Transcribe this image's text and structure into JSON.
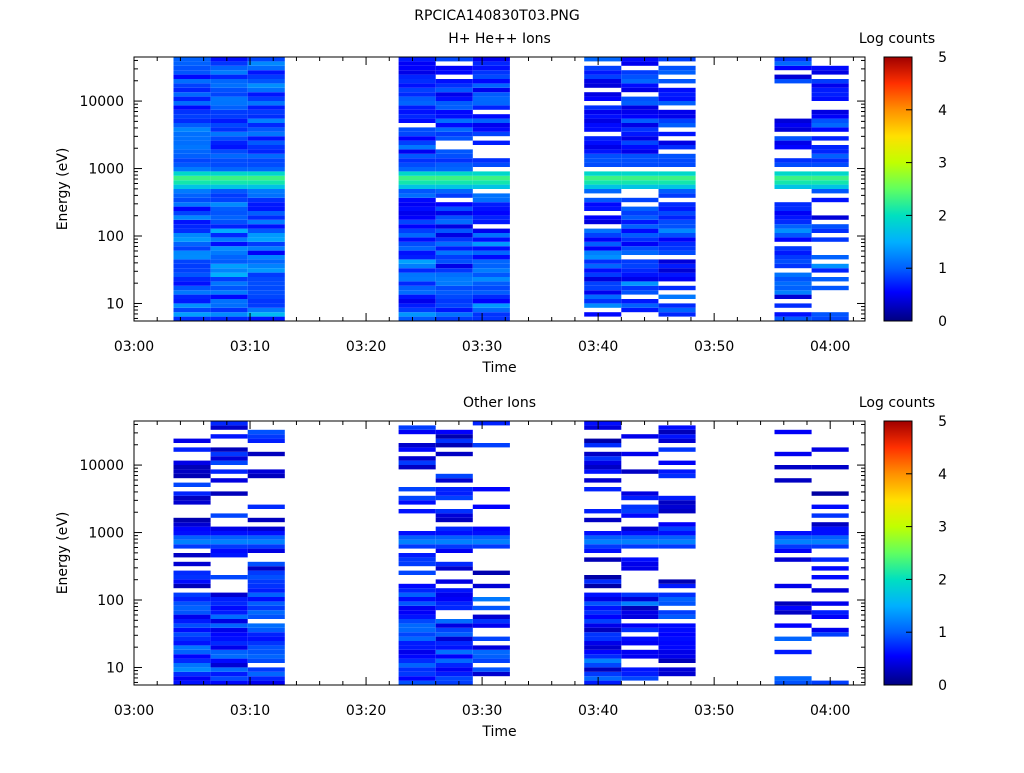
{
  "page_title": "RPCICA140830T03.PNG",
  "chart_data": [
    {
      "type": "heatmap",
      "title": "H+ He++ Ions",
      "xlabel": "Time",
      "ylabel": "Energy (eV)",
      "x_ticks": [
        "03:00",
        "03:10",
        "03:20",
        "03:30",
        "03:40",
        "03:50",
        "04:00"
      ],
      "xlim_minutes": [
        0,
        63
      ],
      "y_scale": "log",
      "ylim": [
        5.5,
        45000
      ],
      "y_ticks": [
        "10",
        "100",
        "1000",
        "10000"
      ],
      "colorbar": {
        "title": "Log counts",
        "ticks": [
          "0",
          "1",
          "2",
          "3",
          "4",
          "5"
        ],
        "range": [
          0,
          5
        ]
      },
      "time_columns": [
        {
          "label": "03:05",
          "start": 3.4,
          "end": 6.6,
          "nrows": 60,
          "seed": 11,
          "base": 0.55,
          "fill": 1.0,
          "low_band": 1.0
        },
        {
          "label": "03:08",
          "start": 6.6,
          "end": 9.8,
          "nrows": 60,
          "seed": 12,
          "base": 0.6,
          "fill": 1.0,
          "low_band": 1.0
        },
        {
          "label": "03:11",
          "start": 9.8,
          "end": 13.0,
          "nrows": 60,
          "seed": 13,
          "base": 0.6,
          "fill": 1.0,
          "low_band": 1.0
        },
        {
          "label": "03:25",
          "start": 22.8,
          "end": 26.0,
          "nrows": 60,
          "seed": 21,
          "base": 0.45,
          "fill": 0.97,
          "low_band": 1.0
        },
        {
          "label": "03:28",
          "start": 26.0,
          "end": 29.2,
          "nrows": 60,
          "seed": 22,
          "base": 0.4,
          "fill": 0.9,
          "low_band": 1.0
        },
        {
          "label": "03:31",
          "start": 29.2,
          "end": 32.4,
          "nrows": 60,
          "seed": 23,
          "base": 0.45,
          "fill": 0.85,
          "low_band": 1.0
        },
        {
          "label": "03:41",
          "start": 38.8,
          "end": 42.0,
          "nrows": 60,
          "seed": 31,
          "base": 0.35,
          "fill": 0.85,
          "low_band": 0.9
        },
        {
          "label": "03:44",
          "start": 42.0,
          "end": 45.2,
          "nrows": 60,
          "seed": 32,
          "base": 0.35,
          "fill": 0.85,
          "low_band": 0.9
        },
        {
          "label": "03:47",
          "start": 45.2,
          "end": 48.4,
          "nrows": 60,
          "seed": 33,
          "base": 0.35,
          "fill": 0.75,
          "low_band": 0.9
        },
        {
          "label": "03:57",
          "start": 55.2,
          "end": 58.4,
          "nrows": 60,
          "seed": 41,
          "base": 0.35,
          "fill": 0.6,
          "low_band": 0.7
        },
        {
          "label": "04:00",
          "start": 58.4,
          "end": 61.6,
          "nrows": 60,
          "seed": 42,
          "base": 0.35,
          "fill": 0.55,
          "low_band": 0.6
        }
      ],
      "peak_energy_eV": 700,
      "peak_level": 2.4
    },
    {
      "type": "heatmap",
      "title": "Other Ions",
      "xlabel": "Time",
      "ylabel": "Energy (eV)",
      "x_ticks": [
        "03:00",
        "03:10",
        "03:20",
        "03:30",
        "03:40",
        "03:50",
        "04:00"
      ],
      "xlim_minutes": [
        0,
        63
      ],
      "y_scale": "log",
      "ylim": [
        5.5,
        45000
      ],
      "y_ticks": [
        "10",
        "100",
        "1000",
        "10000"
      ],
      "colorbar": {
        "title": "Log counts",
        "ticks": [
          "0",
          "1",
          "2",
          "3",
          "4",
          "5"
        ],
        "range": [
          0,
          5
        ]
      },
      "time_columns": [
        {
          "label": "03:05",
          "start": 3.4,
          "end": 6.6,
          "nrows": 60,
          "seed": 51,
          "base": 0.2,
          "fill": 0.55,
          "low_band": 1.0
        },
        {
          "label": "03:08",
          "start": 6.6,
          "end": 9.8,
          "nrows": 60,
          "seed": 52,
          "base": 0.25,
          "fill": 0.5,
          "low_band": 1.0
        },
        {
          "label": "03:11",
          "start": 9.8,
          "end": 13.0,
          "nrows": 60,
          "seed": 53,
          "base": 0.25,
          "fill": 0.5,
          "low_band": 0.9
        },
        {
          "label": "03:25",
          "start": 22.8,
          "end": 26.0,
          "nrows": 60,
          "seed": 61,
          "base": 0.2,
          "fill": 0.5,
          "low_band": 1.0
        },
        {
          "label": "03:28",
          "start": 26.0,
          "end": 29.2,
          "nrows": 60,
          "seed": 62,
          "base": 0.2,
          "fill": 0.45,
          "low_band": 0.9
        },
        {
          "label": "03:31",
          "start": 29.2,
          "end": 32.4,
          "nrows": 60,
          "seed": 63,
          "base": 0.2,
          "fill": 0.4,
          "low_band": 0.5
        },
        {
          "label": "03:41",
          "start": 38.8,
          "end": 42.0,
          "nrows": 60,
          "seed": 71,
          "base": 0.15,
          "fill": 0.45,
          "low_band": 1.0
        },
        {
          "label": "03:44",
          "start": 42.0,
          "end": 45.2,
          "nrows": 60,
          "seed": 72,
          "base": 0.15,
          "fill": 0.4,
          "low_band": 0.8
        },
        {
          "label": "03:47",
          "start": 45.2,
          "end": 48.4,
          "nrows": 60,
          "seed": 73,
          "base": 0.15,
          "fill": 0.4,
          "low_band": 0.8
        },
        {
          "label": "03:57",
          "start": 55.2,
          "end": 58.4,
          "nrows": 60,
          "seed": 81,
          "base": 0.1,
          "fill": 0.3,
          "low_band": 0.3
        },
        {
          "label": "04:00",
          "start": 58.4,
          "end": 61.6,
          "nrows": 60,
          "seed": 82,
          "base": 0.1,
          "fill": 0.25,
          "low_band": 0.3
        }
      ],
      "peak_energy_eV": 750,
      "peak_level": 1.3
    }
  ]
}
